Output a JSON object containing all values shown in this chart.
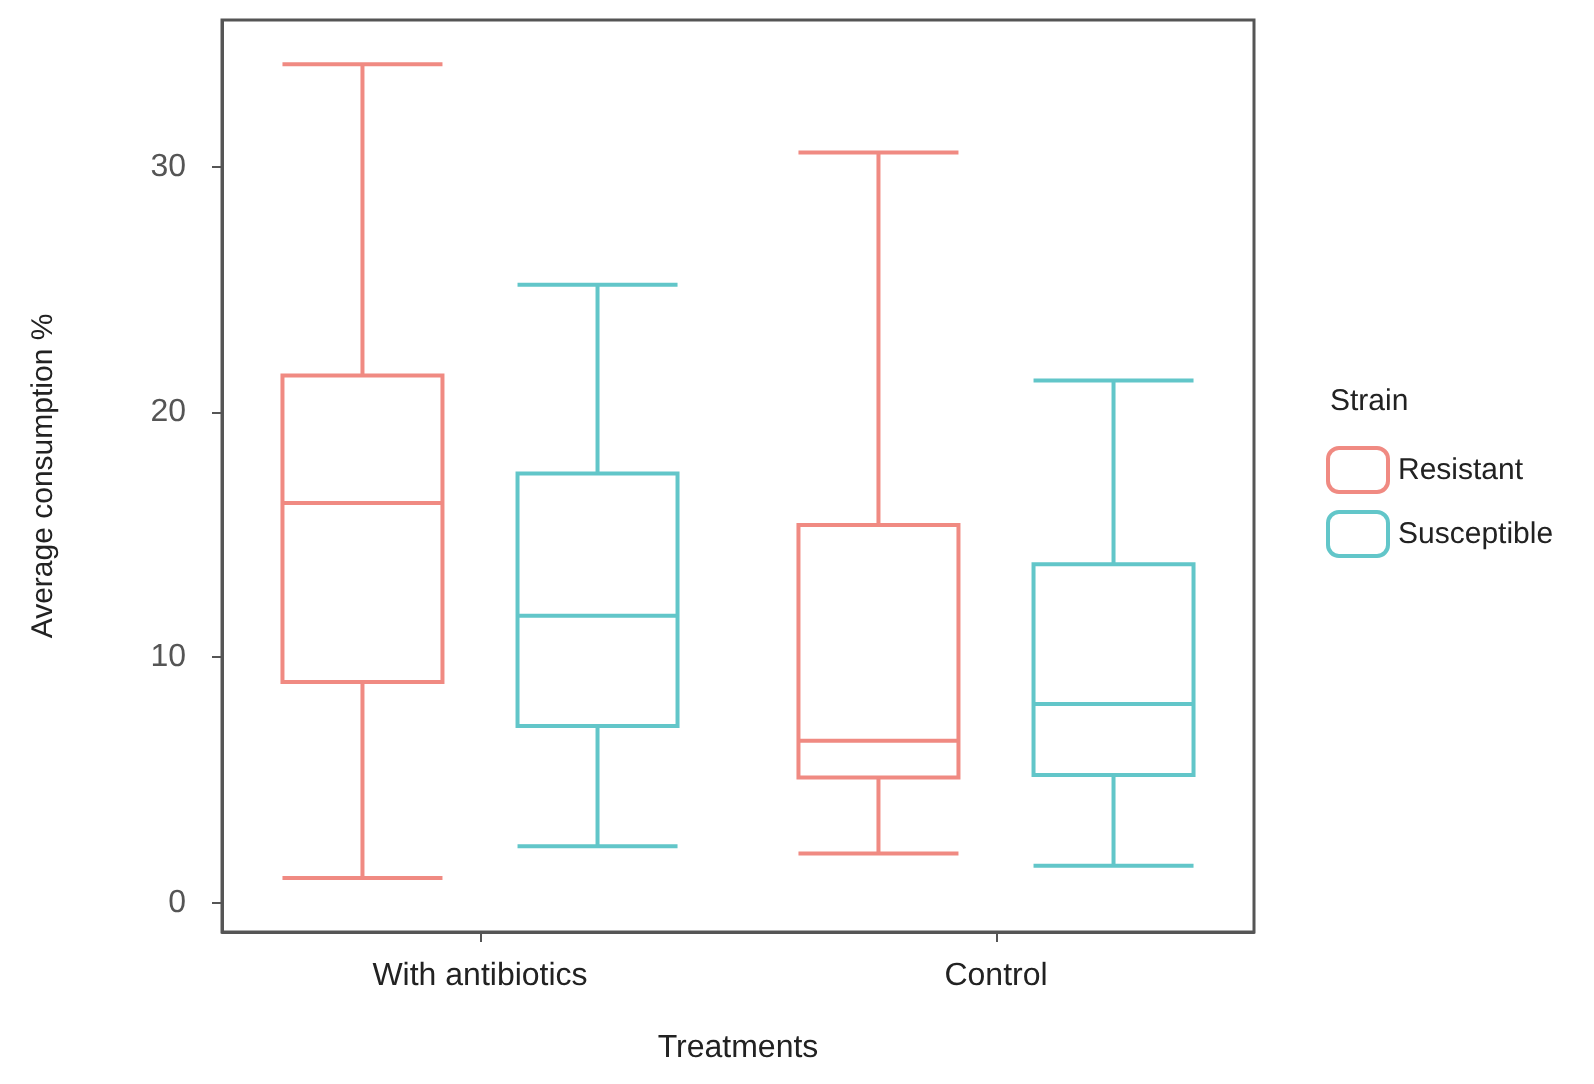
{
  "chart_data": {
    "type": "box",
    "xlabel": "Treatments",
    "ylabel": "Average consumption %",
    "legend_title": "Strain",
    "categories": [
      "With antibiotics",
      "Control"
    ],
    "series": [
      {
        "name": "Resistant",
        "color": "#f08a82",
        "boxes": [
          {
            "low": 1.0,
            "q1": 9.0,
            "median": 16.3,
            "q3": 21.5,
            "high": 34.2
          },
          {
            "low": 2.0,
            "q1": 5.1,
            "median": 6.6,
            "q3": 15.4,
            "high": 30.6
          }
        ]
      },
      {
        "name": "Susceptible",
        "color": "#62c6c9",
        "boxes": [
          {
            "low": 2.3,
            "q1": 7.2,
            "median": 11.7,
            "q3": 17.5,
            "high": 25.2
          },
          {
            "low": 1.5,
            "q1": 5.2,
            "median": 8.1,
            "q3": 13.8,
            "high": 21.3
          }
        ]
      }
    ],
    "ylim": [
      -1.2,
      36
    ],
    "yticks": [
      0,
      10,
      20,
      30
    ],
    "grid": false,
    "legend": "right"
  }
}
